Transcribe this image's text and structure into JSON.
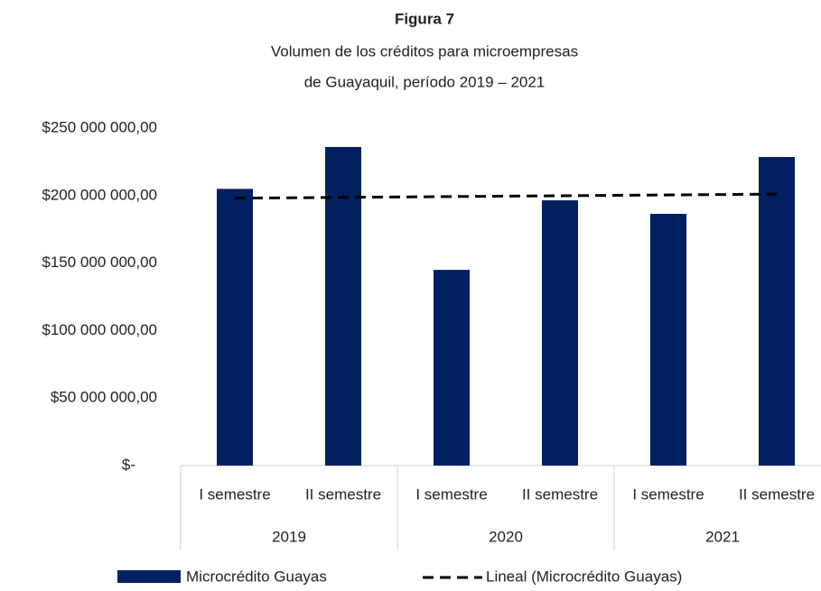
{
  "chart_data": {
    "type": "bar",
    "title": "Figura 7",
    "subtitle": [
      "Volumen de los créditos para microempresas",
      "de Guayaquil, período 2019 – 2021"
    ],
    "groups": [
      {
        "name": "2019",
        "categories": [
          "I semestre",
          "II semestre"
        ]
      },
      {
        "name": "2020",
        "categories": [
          "I semestre",
          "II semestre"
        ]
      },
      {
        "name": "2021",
        "categories": [
          "I semestre",
          "II semestre"
        ]
      }
    ],
    "series": [
      {
        "name": "Microcrédito Guayas",
        "color": "#002060",
        "values": [
          205000000,
          236000000,
          145000000,
          196500000,
          186500000,
          228600000
        ]
      }
    ],
    "trendline": {
      "name": "Lineal (Microcrédito Guayas)",
      "type": "linear",
      "color": "#000000",
      "dashed": true
    },
    "ylim": [
      0,
      250000000
    ],
    "yticks": [
      {
        "value": 0,
        "label": "$-"
      },
      {
        "value": 50000000,
        "label": "$50 000 000,00"
      },
      {
        "value": 100000000,
        "label": "$100 000 000,00"
      },
      {
        "value": 150000000,
        "label": "$150 000 000,00"
      },
      {
        "value": 200000000,
        "label": "$200 000 000,00"
      },
      {
        "value": 250000000,
        "label": "$250 000 000,00"
      }
    ],
    "grid": false,
    "legend": "bottom"
  }
}
